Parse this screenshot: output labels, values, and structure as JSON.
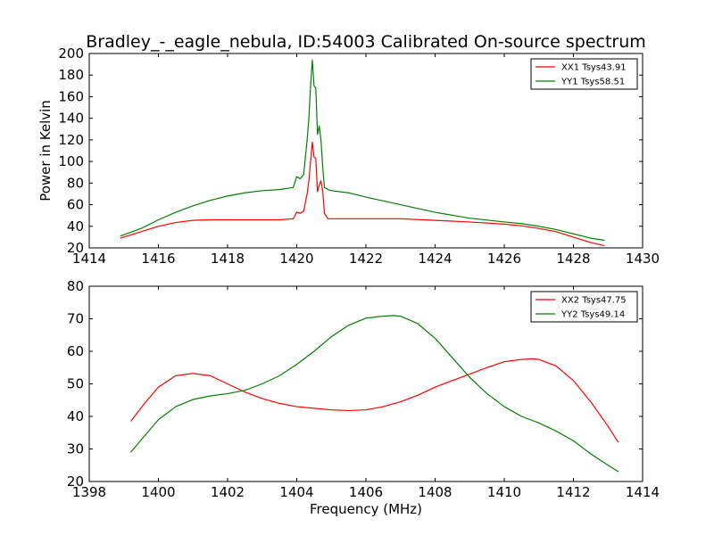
{
  "chart_data": [
    {
      "type": "line",
      "title": "Bradley_-_eagle_nebula, ID:54003 Calibrated On-source spectrum",
      "xlabel": "",
      "ylabel": "Power in Kelvin",
      "xlim": [
        1414,
        1430
      ],
      "ylim": [
        20,
        200
      ],
      "xticks": [
        1414,
        1416,
        1418,
        1420,
        1422,
        1424,
        1426,
        1428,
        1430
      ],
      "yticks": [
        20,
        40,
        60,
        80,
        100,
        120,
        140,
        160,
        180,
        200
      ],
      "legend_position": "top-right",
      "series": [
        {
          "name": "XX1 Tsys43.91",
          "color": "#ff0000",
          "x": [
            1414.9,
            1415.5,
            1416.0,
            1416.5,
            1417.0,
            1417.5,
            1418.0,
            1418.5,
            1419.0,
            1419.5,
            1419.9,
            1420.0,
            1420.1,
            1420.2,
            1420.3,
            1420.35,
            1420.4,
            1420.45,
            1420.5,
            1420.55,
            1420.6,
            1420.65,
            1420.7,
            1420.75,
            1420.8,
            1420.9,
            1421.0,
            1421.5,
            1422.0,
            1423.0,
            1424.0,
            1425.0,
            1426.0,
            1426.5,
            1427.0,
            1427.5,
            1428.0,
            1428.5,
            1428.9
          ],
          "y": [
            29,
            35,
            40,
            43.5,
            45.5,
            46,
            46,
            46,
            46,
            46,
            47,
            53,
            52,
            54,
            70,
            82,
            100,
            118,
            104,
            103,
            72,
            78,
            82,
            73,
            52,
            47,
            47,
            47,
            47,
            47,
            45.5,
            44,
            42,
            40.5,
            38,
            35,
            30,
            25,
            22
          ]
        },
        {
          "name": "YY1 Tsys58.51",
          "color": "#008000",
          "x": [
            1414.9,
            1415.5,
            1416.0,
            1416.5,
            1417.0,
            1417.5,
            1418.0,
            1418.5,
            1419.0,
            1419.5,
            1419.9,
            1420.0,
            1420.1,
            1420.2,
            1420.3,
            1420.35,
            1420.4,
            1420.45,
            1420.5,
            1420.55,
            1420.6,
            1420.65,
            1420.7,
            1420.75,
            1420.8,
            1420.9,
            1421.0,
            1421.5,
            1422.0,
            1423.0,
            1424.0,
            1425.0,
            1426.0,
            1426.5,
            1427.0,
            1427.5,
            1428.0,
            1428.5,
            1428.9
          ],
          "y": [
            31,
            38,
            46,
            53,
            59,
            64,
            68,
            71,
            73,
            74,
            76,
            86,
            84,
            88,
            120,
            140,
            170,
            194,
            170,
            168,
            125,
            133,
            120,
            95,
            76,
            74,
            73,
            71,
            67,
            60,
            53,
            47.5,
            44,
            42.5,
            40,
            37,
            33,
            29,
            27
          ]
        }
      ]
    },
    {
      "type": "line",
      "title": "",
      "xlabel": "Frequency (MHz)",
      "ylabel": "",
      "xlim": [
        1398,
        1414
      ],
      "ylim": [
        20,
        80
      ],
      "xticks": [
        1398,
        1400,
        1402,
        1404,
        1406,
        1408,
        1410,
        1412,
        1414
      ],
      "yticks": [
        20,
        30,
        40,
        50,
        60,
        70,
        80
      ],
      "legend_position": "top-right",
      "series": [
        {
          "name": "XX2 Tsys47.75",
          "color": "#ff0000",
          "x": [
            1399.2,
            1399.6,
            1400.0,
            1400.5,
            1401.0,
            1401.5,
            1402.0,
            1402.5,
            1403.0,
            1403.5,
            1404.0,
            1404.5,
            1405.0,
            1405.5,
            1406.0,
            1406.5,
            1407.0,
            1407.5,
            1408.0,
            1408.5,
            1409.0,
            1409.5,
            1410.0,
            1410.5,
            1410.8,
            1411.0,
            1411.5,
            1412.0,
            1412.5,
            1413.0,
            1413.3
          ],
          "y": [
            38.5,
            44,
            49,
            52.5,
            53.2,
            52.5,
            50,
            47.5,
            45.5,
            44,
            43,
            42.5,
            42,
            41.8,
            42,
            43,
            44.5,
            46.5,
            49,
            51,
            53,
            55,
            56.8,
            57.5,
            57.7,
            57.5,
            55.5,
            51,
            44.5,
            37,
            32
          ]
        },
        {
          "name": "YY2 Tsys49.14",
          "color": "#008000",
          "x": [
            1399.2,
            1399.6,
            1400.0,
            1400.5,
            1401.0,
            1401.5,
            1402.0,
            1402.5,
            1403.0,
            1403.5,
            1404.0,
            1404.5,
            1405.0,
            1405.5,
            1406.0,
            1406.5,
            1406.8,
            1407.0,
            1407.5,
            1408.0,
            1408.5,
            1409.0,
            1409.5,
            1410.0,
            1410.5,
            1411.0,
            1411.5,
            1412.0,
            1412.5,
            1413.0,
            1413.3
          ],
          "y": [
            29,
            34,
            39,
            43,
            45.2,
            46.3,
            47,
            48,
            50,
            52.5,
            56,
            60,
            64.5,
            68,
            70.2,
            70.8,
            71,
            70.8,
            68.5,
            64,
            58,
            52,
            47,
            43,
            40,
            38,
            35.5,
            32.5,
            28.5,
            25,
            23
          ]
        }
      ]
    }
  ]
}
